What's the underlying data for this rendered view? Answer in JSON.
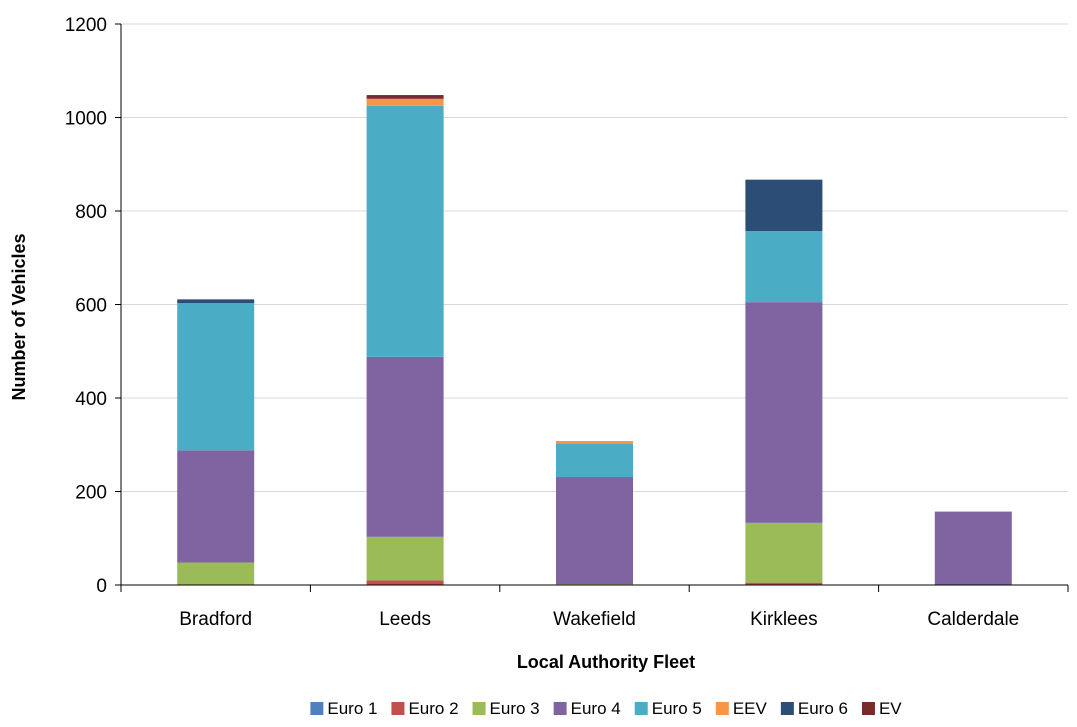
{
  "chart_data": {
    "type": "bar",
    "stacked": true,
    "categories": [
      "Bradford",
      "Leeds",
      "Wakefield",
      "Kirklees",
      "Calderdale"
    ],
    "series": [
      {
        "name": "Euro 1",
        "color": "#4F81BD",
        "values": [
          0,
          0,
          0,
          0,
          0
        ]
      },
      {
        "name": "Euro 2",
        "color": "#C0504D",
        "values": [
          0,
          10,
          0,
          5,
          0
        ]
      },
      {
        "name": "Euro 3",
        "color": "#9BBB59",
        "values": [
          48,
          93,
          2,
          128,
          0
        ]
      },
      {
        "name": "Euro 4",
        "color": "#8064A2",
        "values": [
          240,
          385,
          229,
          472,
          157
        ]
      },
      {
        "name": "Euro 5",
        "color": "#4BACC6",
        "values": [
          315,
          537,
          72,
          152,
          0
        ]
      },
      {
        "name": "EEV",
        "color": "#F79646",
        "values": [
          0,
          15,
          5,
          0,
          0
        ]
      },
      {
        "name": "Euro 6",
        "color": "#2C4D75",
        "values": [
          8,
          0,
          0,
          110,
          0
        ]
      },
      {
        "name": "EV",
        "color": "#772C2A",
        "values": [
          0,
          8,
          0,
          0,
          0
        ]
      }
    ],
    "title": "",
    "xlabel": "Local Authority Fleet",
    "ylabel": "Number of Vehicles",
    "ylim": [
      0,
      1200
    ],
    "yticks": [
      0,
      200,
      400,
      600,
      800,
      1000,
      1200
    ],
    "grid": true,
    "legend_position": "bottom"
  }
}
